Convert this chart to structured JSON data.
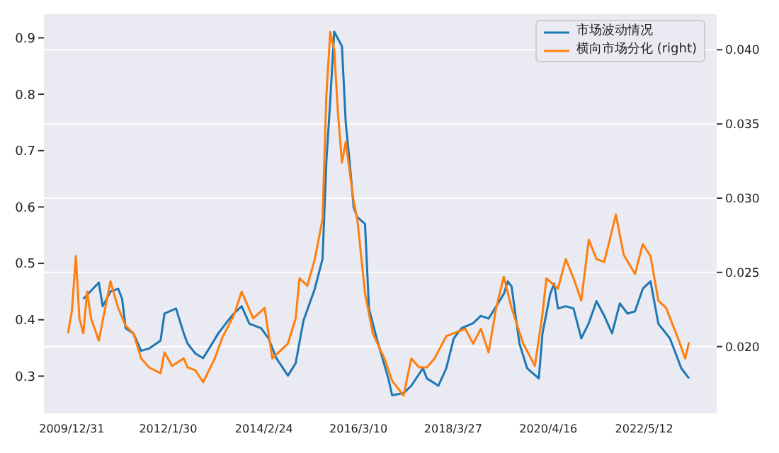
{
  "chart_data": {
    "type": "line",
    "xlim": [
      "2009-05-25",
      "2023-12-05"
    ],
    "xticks": [
      {
        "value": "2009-12-31",
        "label": "2009/12/31"
      },
      {
        "value": "2012-01-30",
        "label": "2012/1/30"
      },
      {
        "value": "2014-02-24",
        "label": "2014/2/24"
      },
      {
        "value": "2016-03-10",
        "label": "2016/3/10"
      },
      {
        "value": "2018-03-27",
        "label": "2018/3/27"
      },
      {
        "value": "2020-04-16",
        "label": "2020/4/16"
      },
      {
        "value": "2022-05-12",
        "label": "2022/5/12"
      }
    ],
    "ylim": [
      0.234,
      0.942
    ],
    "yticks": [
      0.3,
      0.4,
      0.5,
      0.6,
      0.7,
      0.8,
      0.9
    ],
    "y2lim": [
      0.0155,
      0.0424
    ],
    "y2ticks": [
      {
        "value": 0.02,
        "label": "0.020"
      },
      {
        "value": 0.025,
        "label": "0.025"
      },
      {
        "value": 0.03,
        "label": "0.030"
      },
      {
        "value": 0.035,
        "label": "0.035"
      },
      {
        "value": 0.04,
        "label": "0.040"
      }
    ],
    "grid": "y",
    "legend": "top right",
    "marker": "none",
    "line_style": "solid",
    "series": [
      {
        "name": "市场波动情况",
        "color": "#1f77b4",
        "x": [
          "2010-04",
          "2010-08",
          "2010-09",
          "2010-11",
          "2011-01",
          "2011-02",
          "2011-03",
          "2011-05",
          "2011-07",
          "2011-09",
          "2011-12",
          "2012-01",
          "2012-04",
          "2012-06",
          "2012-07",
          "2012-09",
          "2012-11",
          "2013-01",
          "2013-03",
          "2013-05",
          "2013-07",
          "2013-09",
          "2013-11",
          "2014-02",
          "2014-04",
          "2014-06",
          "2014-09",
          "2014-11",
          "2015-01",
          "2015-04",
          "2015-06",
          "2015-07",
          "2015-08",
          "2015-09",
          "2015-11",
          "2015-12",
          "2016-01",
          "2016-02",
          "2016-03",
          "2016-05",
          "2016-06",
          "2016-08",
          "2016-11",
          "2016-12",
          "2017-03",
          "2017-05",
          "2017-08",
          "2017-09",
          "2017-12",
          "2018-02",
          "2018-04",
          "2018-06",
          "2018-09",
          "2018-11",
          "2019-01",
          "2019-05",
          "2019-06",
          "2019-07",
          "2019-09",
          "2019-11",
          "2020-02",
          "2020-03",
          "2020-05",
          "2020-06",
          "2020-07",
          "2020-09",
          "2020-11",
          "2021-01",
          "2021-03",
          "2021-05",
          "2021-07",
          "2021-09",
          "2021-11",
          "2022-01",
          "2022-03",
          "2022-05",
          "2022-07",
          "2022-09",
          "2022-12",
          "2023-03",
          "2023-05"
        ],
        "values": [
          0.437,
          0.466,
          0.424,
          0.45,
          0.455,
          0.437,
          0.385,
          0.376,
          0.345,
          0.349,
          0.363,
          0.411,
          0.42,
          0.376,
          0.358,
          0.34,
          0.332,
          0.354,
          0.376,
          0.394,
          0.411,
          0.424,
          0.393,
          0.385,
          0.367,
          0.332,
          0.301,
          0.323,
          0.398,
          0.455,
          0.508,
          0.68,
          0.79,
          0.911,
          0.885,
          0.749,
          0.679,
          0.6,
          0.582,
          0.57,
          0.42,
          0.367,
          0.296,
          0.266,
          0.27,
          0.283,
          0.314,
          0.296,
          0.283,
          0.314,
          0.367,
          0.385,
          0.394,
          0.407,
          0.402,
          0.446,
          0.468,
          0.459,
          0.358,
          0.314,
          0.296,
          0.376,
          0.446,
          0.464,
          0.42,
          0.424,
          0.42,
          0.367,
          0.394,
          0.433,
          0.407,
          0.376,
          0.429,
          0.411,
          0.415,
          0.455,
          0.468,
          0.393,
          0.367,
          0.314,
          0.296
        ]
      },
      {
        "name": "横向市场分化 (right)",
        "color": "#ff7f0e",
        "axis": "y2",
        "x": [
          "2009-12",
          "2010-01",
          "2010-02",
          "2010-03",
          "2010-04",
          "2010-05",
          "2010-06",
          "2010-08",
          "2010-11",
          "2011-01",
          "2011-03",
          "2011-05",
          "2011-07",
          "2011-09",
          "2011-12",
          "2012-01",
          "2012-03",
          "2012-06",
          "2012-07",
          "2012-09",
          "2012-11",
          "2013-02",
          "2013-04",
          "2013-07",
          "2013-09",
          "2013-12",
          "2014-03",
          "2014-05",
          "2014-09",
          "2014-11",
          "2014-12",
          "2015-02",
          "2015-04",
          "2015-06",
          "2015-07",
          "2015-08",
          "2015-09",
          "2015-10",
          "2015-11",
          "2015-12",
          "2016-02",
          "2016-03",
          "2016-05",
          "2016-07",
          "2016-10",
          "2016-12",
          "2017-03",
          "2017-05",
          "2017-07",
          "2017-09",
          "2017-11",
          "2018-02",
          "2018-04",
          "2018-07",
          "2018-09",
          "2018-11",
          "2019-01",
          "2019-03",
          "2019-05",
          "2019-07",
          "2019-10",
          "2020-01",
          "2020-03",
          "2020-04",
          "2020-07",
          "2020-09",
          "2020-11",
          "2021-01",
          "2021-03",
          "2021-05",
          "2021-07",
          "2021-10",
          "2021-12",
          "2022-03",
          "2022-05",
          "2022-07",
          "2022-09",
          "2022-11",
          "2023-02",
          "2023-04",
          "2023-05"
        ],
        "values": [
          0.0209,
          0.0224,
          0.0261,
          0.0219,
          0.0209,
          0.0237,
          0.0219,
          0.0204,
          0.0244,
          0.0226,
          0.0214,
          0.0209,
          0.0192,
          0.0186,
          0.0182,
          0.0196,
          0.0187,
          0.0192,
          0.0186,
          0.0184,
          0.0176,
          0.0192,
          0.0206,
          0.0221,
          0.0237,
          0.0219,
          0.0226,
          0.0192,
          0.0202,
          0.0219,
          0.0246,
          0.0241,
          0.0259,
          0.0286,
          0.0369,
          0.0412,
          0.04,
          0.0357,
          0.0324,
          0.0338,
          0.0298,
          0.0286,
          0.0236,
          0.0209,
          0.0192,
          0.0177,
          0.0167,
          0.0192,
          0.0186,
          0.0186,
          0.0192,
          0.0207,
          0.0209,
          0.0212,
          0.0202,
          0.0212,
          0.0196,
          0.0226,
          0.0247,
          0.0226,
          0.0202,
          0.0187,
          0.0222,
          0.0246,
          0.0239,
          0.0259,
          0.0246,
          0.0231,
          0.0272,
          0.0259,
          0.0257,
          0.0289,
          0.0262,
          0.0249,
          0.0269,
          0.0261,
          0.0231,
          0.0226,
          0.0206,
          0.0192,
          0.0203
        ]
      }
    ]
  }
}
